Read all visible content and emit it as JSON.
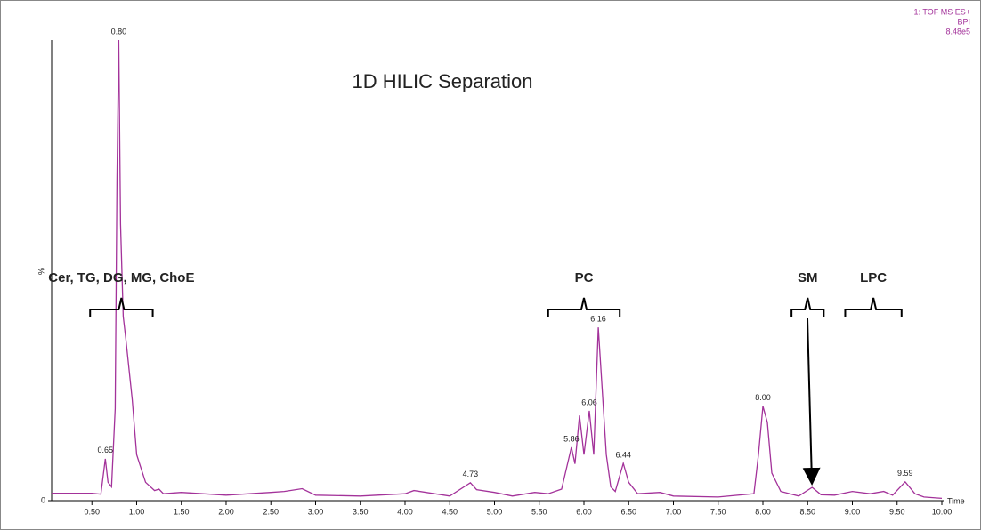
{
  "chart_data": {
    "type": "line",
    "title": "1D HILIC Separation",
    "info": [
      "1: TOF MS ES+",
      "BPI",
      "8.48e5"
    ],
    "xlabel": "Time",
    "ylabel": "%",
    "color": "#a3329a",
    "xlim": [
      0.05,
      10.0
    ],
    "ylim": [
      0,
      100
    ],
    "yticks": [
      0
    ],
    "xticks": [
      {
        "value": 0.5,
        "label": "0.50"
      },
      {
        "value": 1.0,
        "label": "1.00"
      },
      {
        "value": 1.5,
        "label": "1.50"
      },
      {
        "value": 2.0,
        "label": "2.00"
      },
      {
        "value": 2.5,
        "label": "2.50"
      },
      {
        "value": 3.0,
        "label": "3.00"
      },
      {
        "value": 3.5,
        "label": "3.50"
      },
      {
        "value": 4.0,
        "label": "4.00"
      },
      {
        "value": 4.5,
        "label": "4.50"
      },
      {
        "value": 5.0,
        "label": "5.00"
      },
      {
        "value": 5.5,
        "label": "5.50"
      },
      {
        "value": 6.0,
        "label": "6.00"
      },
      {
        "value": 6.5,
        "label": "6.50"
      },
      {
        "value": 7.0,
        "label": "7.00"
      },
      {
        "value": 7.5,
        "label": "7.50"
      },
      {
        "value": 8.0,
        "label": "8.00"
      },
      {
        "value": 8.5,
        "label": "8.50"
      },
      {
        "value": 9.0,
        "label": "9.00"
      },
      {
        "value": 9.5,
        "label": "9.50"
      },
      {
        "value": 10.0,
        "label": "10.00"
      }
    ],
    "x": [
      0.05,
      0.5,
      0.6,
      0.65,
      0.68,
      0.72,
      0.76,
      0.78,
      0.8,
      0.82,
      0.85,
      0.88,
      0.95,
      1.0,
      1.1,
      1.2,
      1.25,
      1.3,
      1.5,
      2.0,
      2.5,
      2.65,
      2.85,
      3.0,
      3.5,
      4.0,
      4.1,
      4.5,
      4.73,
      4.8,
      5.0,
      5.2,
      5.45,
      5.6,
      5.75,
      5.86,
      5.9,
      5.95,
      6.0,
      6.06,
      6.11,
      6.16,
      6.25,
      6.3,
      6.35,
      6.44,
      6.5,
      6.6,
      6.85,
      7.0,
      7.5,
      7.9,
      7.95,
      8.0,
      8.05,
      8.1,
      8.2,
      8.4,
      8.55,
      8.65,
      8.8,
      9.0,
      9.2,
      9.35,
      9.45,
      9.59,
      9.7,
      9.8,
      10.0
    ],
    "values": [
      1.6,
      1.6,
      1.4,
      9.1,
      4,
      3,
      20,
      70,
      100,
      60,
      40,
      35,
      22,
      10,
      4,
      2.2,
      2.5,
      1.5,
      1.8,
      1.2,
      1.8,
      2,
      2.6,
      1.2,
      1,
      1.5,
      2.2,
      1,
      3.9,
      2.4,
      1.8,
      1,
      1.8,
      1.5,
      2.5,
      11.6,
      8,
      18.5,
      10,
      19.5,
      10,
      37.6,
      10,
      3,
      2,
      8.1,
      4,
      1.5,
      1.8,
      1,
      0.8,
      1.5,
      10,
      20.5,
      17,
      6,
      2,
      1,
      2.9,
      1.3,
      1.2,
      2,
      1.5,
      2,
      1.2,
      4.1,
      1.5,
      0.8,
      0.5
    ],
    "peak_labels": [
      {
        "value": 0.65,
        "label": "0.65"
      },
      {
        "value": 0.8,
        "label": "0.80"
      },
      {
        "value": 4.73,
        "label": "4.73"
      },
      {
        "value": 5.86,
        "label": "5.86"
      },
      {
        "value": 6.06,
        "label": "6.06"
      },
      {
        "value": 6.16,
        "label": "6.16"
      },
      {
        "value": 6.44,
        "label": "6.44"
      },
      {
        "value": 8.0,
        "label": "8.00"
      },
      {
        "value": 9.59,
        "label": "9.59"
      }
    ],
    "groups": [
      {
        "label": "Cer, TG, DG, MG, ChoE",
        "range": [
          0.48,
          1.18
        ]
      },
      {
        "label": "PC",
        "range": [
          5.6,
          6.4
        ]
      },
      {
        "label": "SM",
        "range": [
          8.32,
          8.68
        ]
      },
      {
        "label": "LPC",
        "range": [
          8.92,
          9.55
        ]
      }
    ]
  }
}
